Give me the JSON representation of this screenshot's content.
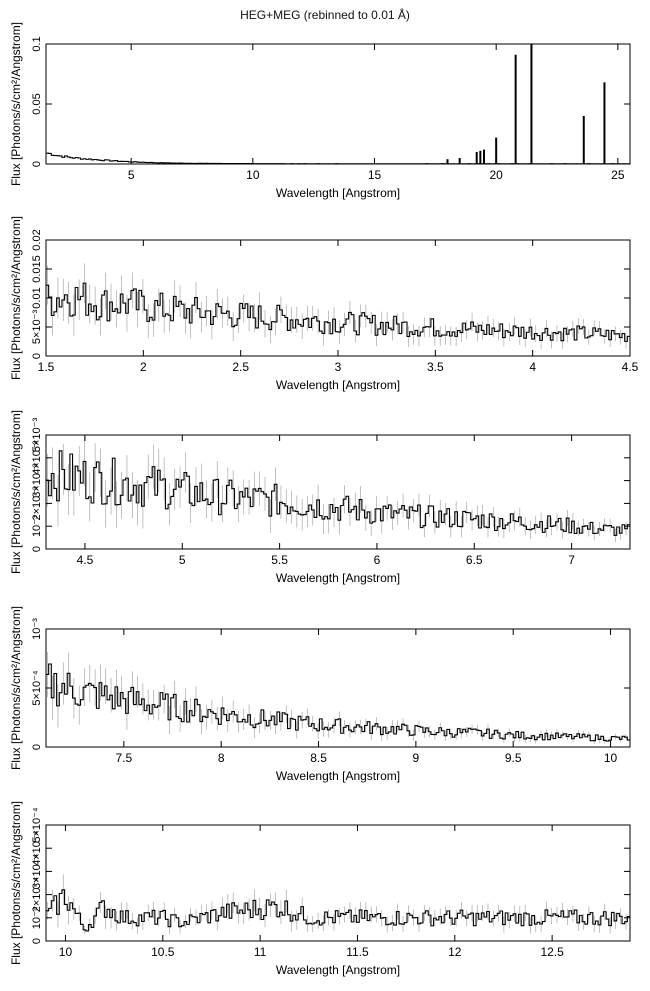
{
  "title": "HEG+MEG (rebinned to 0.01 Å)",
  "chart_data": [
    {
      "type": "line",
      "xlabel": "Wavelength [Angstrom]",
      "ylabel": "Flux [Photons/s/cm²/Angstrom]",
      "xlim": [
        1.5,
        25.5
      ],
      "ylim": [
        0,
        0.1
      ],
      "xticks": [
        5,
        10,
        15,
        20,
        25
      ],
      "yticks": [
        0,
        0.05,
        0.1
      ],
      "ytick_labels": [
        "0",
        "0.05",
        "0.1"
      ],
      "series": [
        {
          "x": [
            1.6,
            2.0,
            2.5,
            3.0,
            3.5,
            4.0,
            5.0,
            6.0,
            7.0,
            8.0,
            10.0,
            12.0,
            15.0,
            18.0,
            20.0,
            22.0,
            25.5
          ],
          "y": [
            0.009,
            0.007,
            0.0055,
            0.0045,
            0.0037,
            0.003,
            0.0018,
            0.0011,
            0.0007,
            0.0005,
            0.0003,
            0.0002,
            0.0002,
            0.0002,
            0.0002,
            0.0002,
            0.0002
          ]
        }
      ],
      "lines": [
        {
          "x": 18.0,
          "y": 0.004
        },
        {
          "x": 18.5,
          "y": 0.005
        },
        {
          "x": 19.2,
          "y": 0.01
        },
        {
          "x": 19.35,
          "y": 0.011
        },
        {
          "x": 19.5,
          "y": 0.012
        },
        {
          "x": 20.0,
          "y": 0.022
        },
        {
          "x": 20.8,
          "y": 0.091
        },
        {
          "x": 21.45,
          "y": 0.1
        },
        {
          "x": 23.6,
          "y": 0.04
        },
        {
          "x": 24.45,
          "y": 0.068
        }
      ]
    },
    {
      "type": "line",
      "xlabel": "Wavelength [Angstrom]",
      "ylabel": "Flux [Photons/s/cm²/Angstrom]",
      "xlim": [
        1.5,
        4.5
      ],
      "ylim": [
        0,
        0.02
      ],
      "xticks": [
        1.5,
        2,
        2.5,
        3,
        3.5,
        4,
        4.5
      ],
      "yticks": [
        0,
        0.005,
        0.01,
        0.015,
        0.02
      ],
      "ytick_labels": [
        "0",
        "5×10⁻³",
        "0.01",
        "0.015",
        "0.02"
      ],
      "series": [
        {
          "x": [
            1.5,
            1.6,
            1.7,
            1.8,
            1.9,
            2.0,
            2.2,
            2.5,
            2.8,
            3.0,
            3.3,
            3.6,
            4.0,
            4.3,
            4.5
          ],
          "y": [
            0.0095,
            0.0105,
            0.0098,
            0.009,
            0.0092,
            0.0085,
            0.0078,
            0.007,
            0.0063,
            0.0058,
            0.0052,
            0.0047,
            0.0042,
            0.0038,
            0.0035
          ]
        }
      ]
    },
    {
      "type": "line",
      "xlabel": "Wavelength [Angstrom]",
      "ylabel": "Flux [Photons/s/cm²/Angstrom]",
      "xlim": [
        4.3,
        7.3
      ],
      "ylim": [
        0,
        0.005
      ],
      "xticks": [
        4.5,
        5,
        5.5,
        6,
        6.5,
        7
      ],
      "yticks": [
        0,
        0.001,
        0.002,
        0.003,
        0.004,
        0.005
      ],
      "ytick_labels": [
        "0",
        "10⁻³",
        "2×10⁻³",
        "3×10⁻³",
        "4×10⁻³",
        "5×10⁻³"
      ],
      "series": [
        {
          "x": [
            4.3,
            4.5,
            4.7,
            4.9,
            5.1,
            5.3,
            5.5,
            5.7,
            5.9,
            6.1,
            6.3,
            6.5,
            6.7,
            6.9,
            7.1,
            7.3
          ],
          "y": [
            0.0033,
            0.0031,
            0.0029,
            0.0027,
            0.0024,
            0.0022,
            0.0021,
            0.0019,
            0.0017,
            0.0015,
            0.0014,
            0.0013,
            0.0012,
            0.0011,
            0.0009,
            0.0008
          ]
        }
      ]
    },
    {
      "type": "line",
      "xlabel": "Wavelength [Angstrom]",
      "ylabel": "Flux [Photons/s/cm²/Angstrom]",
      "xlim": [
        7.1,
        10.1
      ],
      "ylim": [
        0,
        0.001
      ],
      "xticks": [
        7.5,
        8,
        8.5,
        9,
        9.5,
        10
      ],
      "yticks": [
        0,
        0.0005,
        0.001
      ],
      "ytick_labels": [
        "0",
        "5×10⁻⁴",
        "10⁻³"
      ],
      "series": [
        {
          "x": [
            7.1,
            7.3,
            7.5,
            7.7,
            7.9,
            8.1,
            8.3,
            8.5,
            8.7,
            8.9,
            9.1,
            9.3,
            9.5,
            9.7,
            9.9,
            10.1
          ],
          "y": [
            0.00055,
            0.00046,
            0.0004,
            0.00035,
            0.0003,
            0.00026,
            0.00022,
            0.00019,
            0.00017,
            0.00015,
            0.00013,
            0.00012,
            0.0001,
            9e-05,
            8e-05,
            7e-05
          ]
        }
      ]
    },
    {
      "type": "line",
      "xlabel": "Wavelength [Angstrom]",
      "ylabel": "Flux [Photons/s/cm²/Angstrom]",
      "xlim": [
        9.9,
        12.9
      ],
      "ylim": [
        0,
        0.0005
      ],
      "xticks": [
        10,
        10.5,
        11,
        11.5,
        12,
        12.5
      ],
      "yticks": [
        0,
        0.0001,
        0.0002,
        0.0003,
        0.0004,
        0.0005
      ],
      "ytick_labels": [
        "0",
        "10⁻⁴",
        "2×10⁻⁴",
        "3×10⁻⁴",
        "4×10⁻⁴",
        "5×10⁻⁴"
      ],
      "series": [
        {
          "x": [
            9.9,
            10.0,
            10.1,
            10.2,
            10.3,
            10.5,
            10.6,
            10.8,
            11.1,
            11.25,
            11.55,
            12.05
          ],
          "y": [
            0.0001,
            0.0002,
            5e-05,
            0.00015,
            0.0001,
            0.0001,
            8e-05,
            0.00012,
            0.00015,
            0.0001,
            0.0001,
            0.0001
          ]
        }
      ]
    }
  ]
}
